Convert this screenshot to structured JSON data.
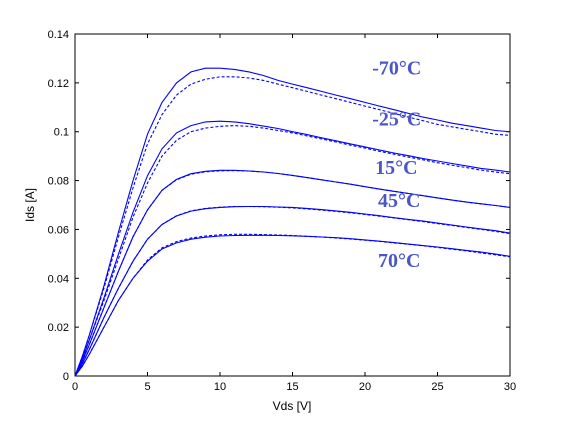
{
  "chart_data": {
    "type": "line",
    "title": "",
    "xlabel": "Vds [V]",
    "ylabel": "Ids [A]",
    "xlim": [
      0,
      30
    ],
    "ylim": [
      0,
      0.14
    ],
    "xticks": [
      0,
      5,
      10,
      15,
      20,
      25,
      30
    ],
    "yticks": [
      0,
      0.02,
      0.04,
      0.06,
      0.08,
      0.1,
      0.12,
      0.14
    ],
    "grid": false,
    "line_color": "#0000ff",
    "annotation_color": "#4a56c6",
    "x": [
      0,
      0.5,
      1,
      2,
      3,
      4,
      5,
      6,
      7,
      8,
      9,
      10,
      11,
      12,
      13,
      14,
      15,
      16,
      17,
      18,
      19,
      20,
      21,
      22,
      23,
      24,
      25,
      26,
      27,
      28,
      29,
      30
    ],
    "series": [
      {
        "name": "-70°C",
        "style": "solid",
        "values": [
          0,
          0.008,
          0.017,
          0.037,
          0.059,
          0.08,
          0.099,
          0.112,
          0.12,
          0.1245,
          0.126,
          0.126,
          0.1255,
          0.1245,
          0.123,
          0.121,
          0.1195,
          0.118,
          0.1165,
          0.115,
          0.1135,
          0.112,
          0.1105,
          0.109,
          0.1075,
          0.106,
          0.1048,
          0.1035,
          0.1025,
          0.1015,
          0.1005,
          0.1
        ]
      },
      {
        "name": "-70°C",
        "style": "dashed",
        "values": [
          0,
          0.008,
          0.017,
          0.036,
          0.057,
          0.077,
          0.095,
          0.107,
          0.115,
          0.1195,
          0.1215,
          0.1225,
          0.1225,
          0.122,
          0.121,
          0.1195,
          0.118,
          0.1165,
          0.115,
          0.1135,
          0.112,
          0.1105,
          0.109,
          0.1075,
          0.106,
          0.1045,
          0.103,
          0.102,
          0.101,
          0.1,
          0.099,
          0.0985
        ]
      },
      {
        "name": "-25°C",
        "style": "solid",
        "values": [
          0,
          0.007,
          0.015,
          0.032,
          0.05,
          0.067,
          0.082,
          0.093,
          0.0995,
          0.1025,
          0.104,
          0.1043,
          0.104,
          0.1033,
          0.1023,
          0.1013,
          0.1,
          0.0988,
          0.0975,
          0.0963,
          0.095,
          0.0938,
          0.0925,
          0.0913,
          0.0902,
          0.089,
          0.088,
          0.087,
          0.086,
          0.085,
          0.0843,
          0.0835
        ]
      },
      {
        "name": "-25°C",
        "style": "dashed",
        "values": [
          0,
          0.007,
          0.015,
          0.031,
          0.048,
          0.065,
          0.079,
          0.09,
          0.0965,
          0.1,
          0.1015,
          0.1022,
          0.1025,
          0.1022,
          0.1015,
          0.1005,
          0.0995,
          0.0983,
          0.097,
          0.0958,
          0.0945,
          0.0933,
          0.092,
          0.0908,
          0.0896,
          0.0885,
          0.0873,
          0.0863,
          0.0853,
          0.0843,
          0.0835,
          0.0828
        ]
      },
      {
        "name": "15°C",
        "style": "solid",
        "values": [
          0,
          0.006,
          0.013,
          0.028,
          0.043,
          0.057,
          0.068,
          0.076,
          0.0805,
          0.0828,
          0.0838,
          0.0842,
          0.0842,
          0.0839,
          0.0835,
          0.0829,
          0.0821,
          0.0812,
          0.0803,
          0.0794,
          0.0785,
          0.0775,
          0.0765,
          0.0756,
          0.0747,
          0.0738,
          0.0729,
          0.072,
          0.0712,
          0.0705,
          0.0698,
          0.069
        ]
      },
      {
        "name": "15°C",
        "style": "dashed",
        "values": [
          0,
          0.006,
          0.013,
          0.028,
          0.043,
          0.057,
          0.068,
          0.076,
          0.0803,
          0.0826,
          0.0836,
          0.084,
          0.0841,
          0.0839,
          0.0835,
          0.0829,
          0.0821,
          0.0812,
          0.0803,
          0.0794,
          0.0785,
          0.0775,
          0.0765,
          0.0756,
          0.0747,
          0.0738,
          0.0729,
          0.072,
          0.0712,
          0.0705,
          0.0698,
          0.069
        ]
      },
      {
        "name": "45°C",
        "style": "solid",
        "values": [
          0,
          0.005,
          0.011,
          0.024,
          0.036,
          0.047,
          0.056,
          0.062,
          0.0655,
          0.0675,
          0.0685,
          0.069,
          0.0693,
          0.0694,
          0.0694,
          0.0692,
          0.069,
          0.0686,
          0.0681,
          0.0676,
          0.067,
          0.0663,
          0.0656,
          0.0648,
          0.0641,
          0.0634,
          0.0626,
          0.0618,
          0.061,
          0.0602,
          0.0595,
          0.0585
        ]
      },
      {
        "name": "45°C",
        "style": "dashed",
        "values": [
          0,
          0.005,
          0.011,
          0.024,
          0.036,
          0.047,
          0.056,
          0.062,
          0.0656,
          0.0676,
          0.0686,
          0.0691,
          0.0694,
          0.0694,
          0.0693,
          0.0691,
          0.0688,
          0.0684,
          0.0679,
          0.0674,
          0.0668,
          0.0661,
          0.0654,
          0.0647,
          0.064,
          0.0632,
          0.0624,
          0.0616,
          0.0608,
          0.06,
          0.0592,
          0.0583
        ]
      },
      {
        "name": "70°C",
        "style": "solid",
        "values": [
          0,
          0.004,
          0.009,
          0.02,
          0.031,
          0.04,
          0.047,
          0.052,
          0.0545,
          0.056,
          0.0568,
          0.0573,
          0.0575,
          0.0576,
          0.0576,
          0.0575,
          0.0574,
          0.0572,
          0.0569,
          0.0566,
          0.0562,
          0.0557,
          0.0552,
          0.0546,
          0.054,
          0.0534,
          0.0528,
          0.0521,
          0.0514,
          0.0507,
          0.0499,
          0.049
        ]
      },
      {
        "name": "70°C",
        "style": "dashed",
        "values": [
          0,
          0.004,
          0.009,
          0.02,
          0.031,
          0.04,
          0.0475,
          0.0525,
          0.055,
          0.0565,
          0.0573,
          0.0578,
          0.058,
          0.058,
          0.0579,
          0.0577,
          0.0575,
          0.0572,
          0.0569,
          0.0565,
          0.0561,
          0.0556,
          0.0551,
          0.0545,
          0.0539,
          0.0533,
          0.0526,
          0.0519,
          0.0512,
          0.0504,
          0.0496,
          0.0488
        ]
      }
    ],
    "annotations": [
      {
        "text": "-70°C",
        "x": 20.5,
        "y": 0.1235
      },
      {
        "text": "-25°C",
        "x": 20.5,
        "y": 0.1025
      },
      {
        "text": "15°C",
        "x": 20.7,
        "y": 0.0826
      },
      {
        "text": "45°C",
        "x": 20.9,
        "y": 0.0692
      },
      {
        "text": "70°C",
        "x": 20.9,
        "y": 0.0446
      }
    ]
  }
}
